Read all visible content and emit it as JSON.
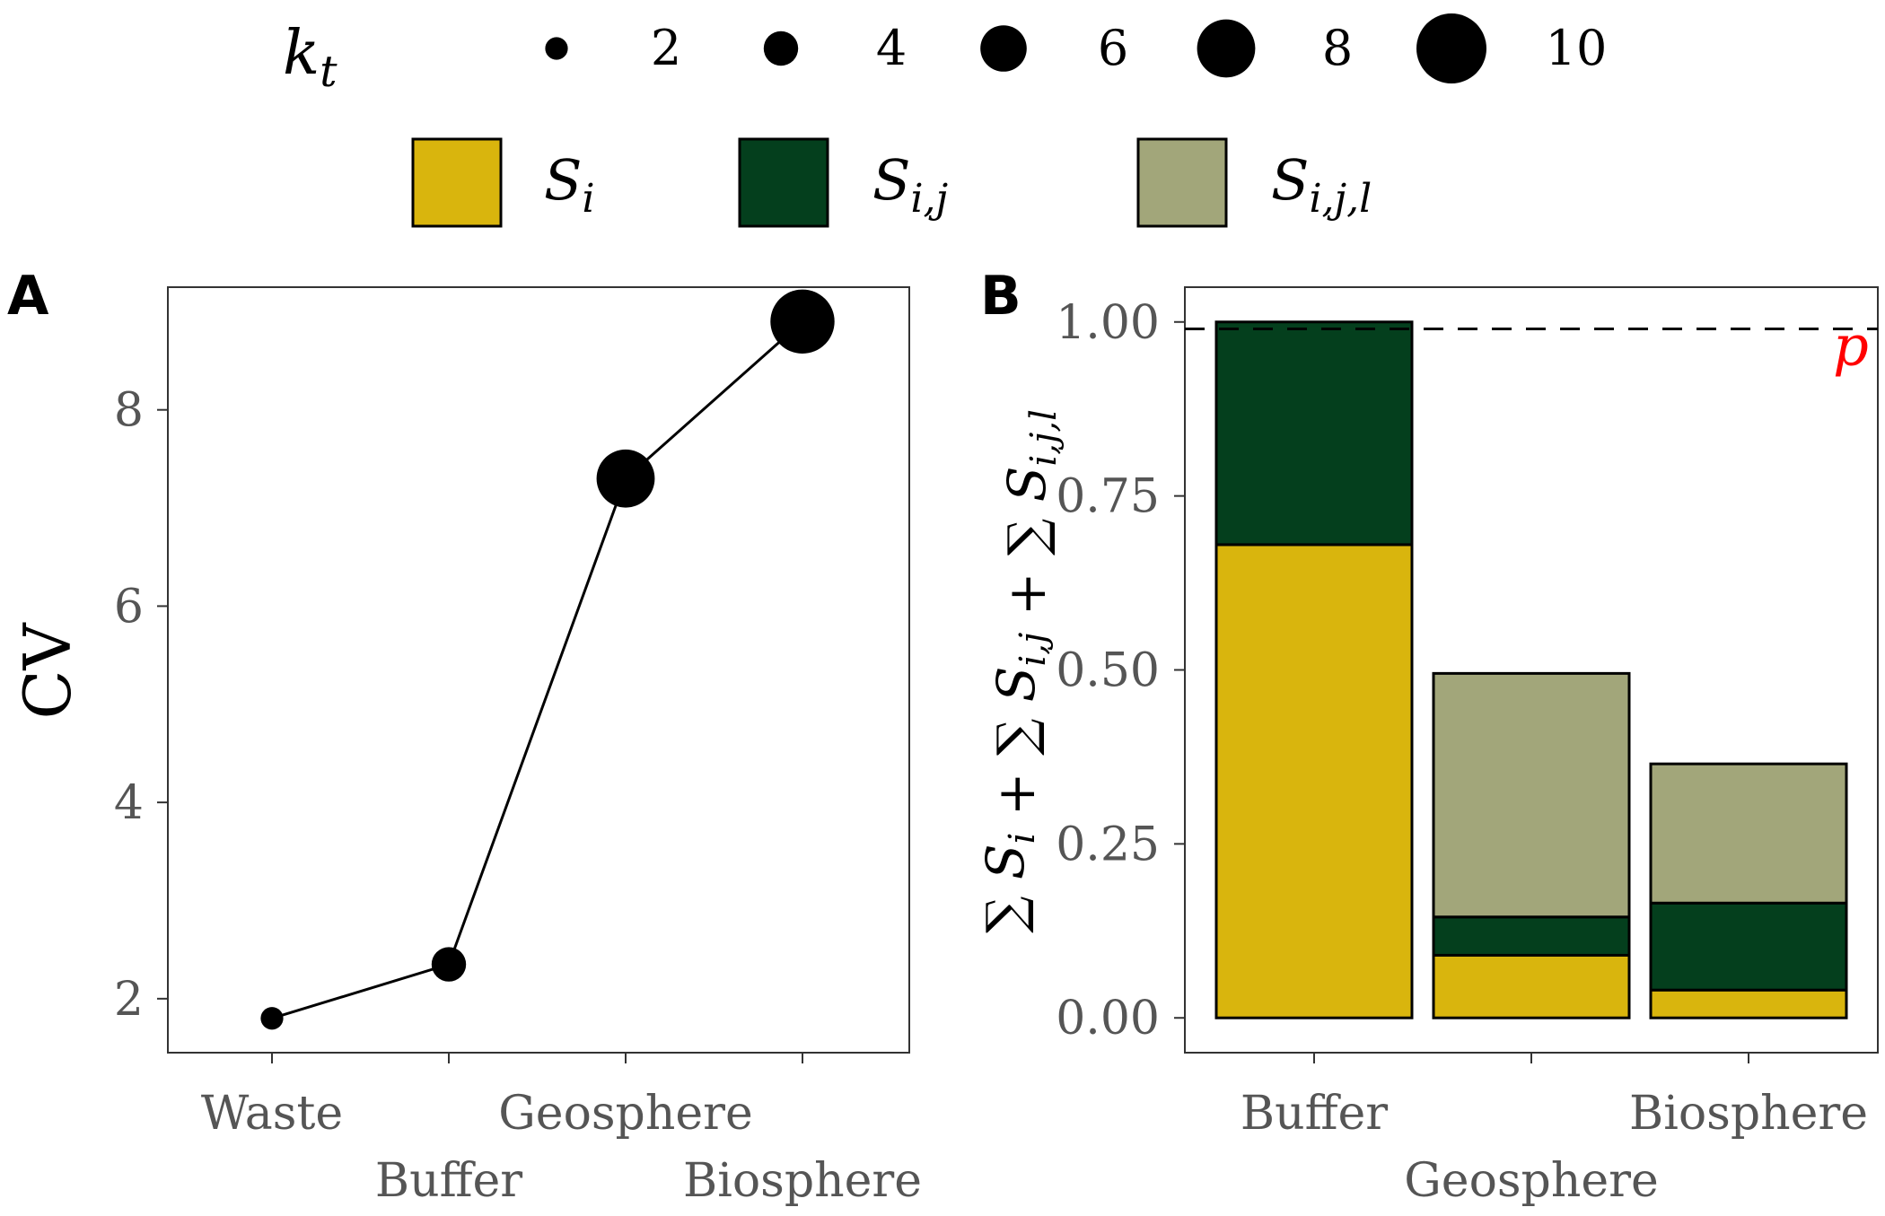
{
  "colors": {
    "S_i": "#d9b50d",
    "S_ij": "#043f1d",
    "S_ijl": "#a2a67a",
    "threshold": "#ff0000",
    "line": "#000000"
  },
  "legend": {
    "size_title_main": "k",
    "size_title_sub": "t",
    "size_keys": [
      2,
      4,
      6,
      8,
      10
    ],
    "fill_keys": [
      {
        "key": "S_i",
        "main": "S",
        "sub": "i"
      },
      {
        "key": "S_ij",
        "main": "S",
        "sub": "i,j"
      },
      {
        "key": "S_ijl",
        "main": "S",
        "sub": "i,j,l"
      }
    ]
  },
  "panels": {
    "a_tag": "A",
    "b_tag": "B"
  },
  "chart_data": [
    {
      "type": "line",
      "panel": "A",
      "categories": [
        "Waste",
        "Buffer",
        "Geosphere",
        "Biosphere"
      ],
      "values": [
        1.8,
        2.35,
        7.3,
        8.9
      ],
      "point_size_kt": [
        2,
        4,
        8,
        9
      ],
      "ylabel": "CV",
      "xlabel": "",
      "ylim": [
        1.45,
        9.25
      ],
      "yticks": [
        2,
        4,
        6,
        8
      ],
      "grid": false
    },
    {
      "type": "bar",
      "stacked": true,
      "panel": "B",
      "categories": [
        "Buffer",
        "Geosphere",
        "Biosphere"
      ],
      "series": [
        {
          "key": "S_i",
          "values": [
            0.68,
            0.09,
            0.04
          ]
        },
        {
          "key": "S_ij",
          "values": [
            0.32,
            0.055,
            0.125
          ]
        },
        {
          "key": "S_ijl",
          "values": [
            0.0,
            0.35,
            0.2
          ]
        }
      ],
      "ylabel": "∑ S_i + ∑ S_i,j + ∑ S_i,j,l",
      "xlabel": "",
      "ylim": [
        -0.05,
        1.05
      ],
      "yticks": [
        0.0,
        0.25,
        0.5,
        0.75,
        1.0
      ],
      "ytick_labels": [
        "0.00",
        "0.25",
        "0.50",
        "0.75",
        "1.00"
      ],
      "threshold": {
        "value": 0.99,
        "label": "p"
      },
      "grid": false
    }
  ]
}
